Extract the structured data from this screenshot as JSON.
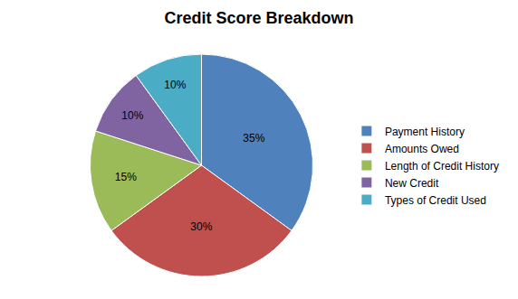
{
  "chart_data": {
    "type": "pie",
    "title": "Credit Score Breakdown",
    "categories": [
      "Payment History",
      "Amounts Owed",
      "Length of Credit History",
      "New Credit",
      "Types of Credit Used"
    ],
    "values": [
      35,
      30,
      15,
      10,
      10
    ],
    "value_labels": [
      "35%",
      "30%",
      "15%",
      "10%",
      "10%"
    ],
    "colors": [
      "#4f81bd",
      "#c0504d",
      "#9bbb59",
      "#8064a2",
      "#4bacc6"
    ],
    "data_labels": true,
    "legend": "right"
  }
}
